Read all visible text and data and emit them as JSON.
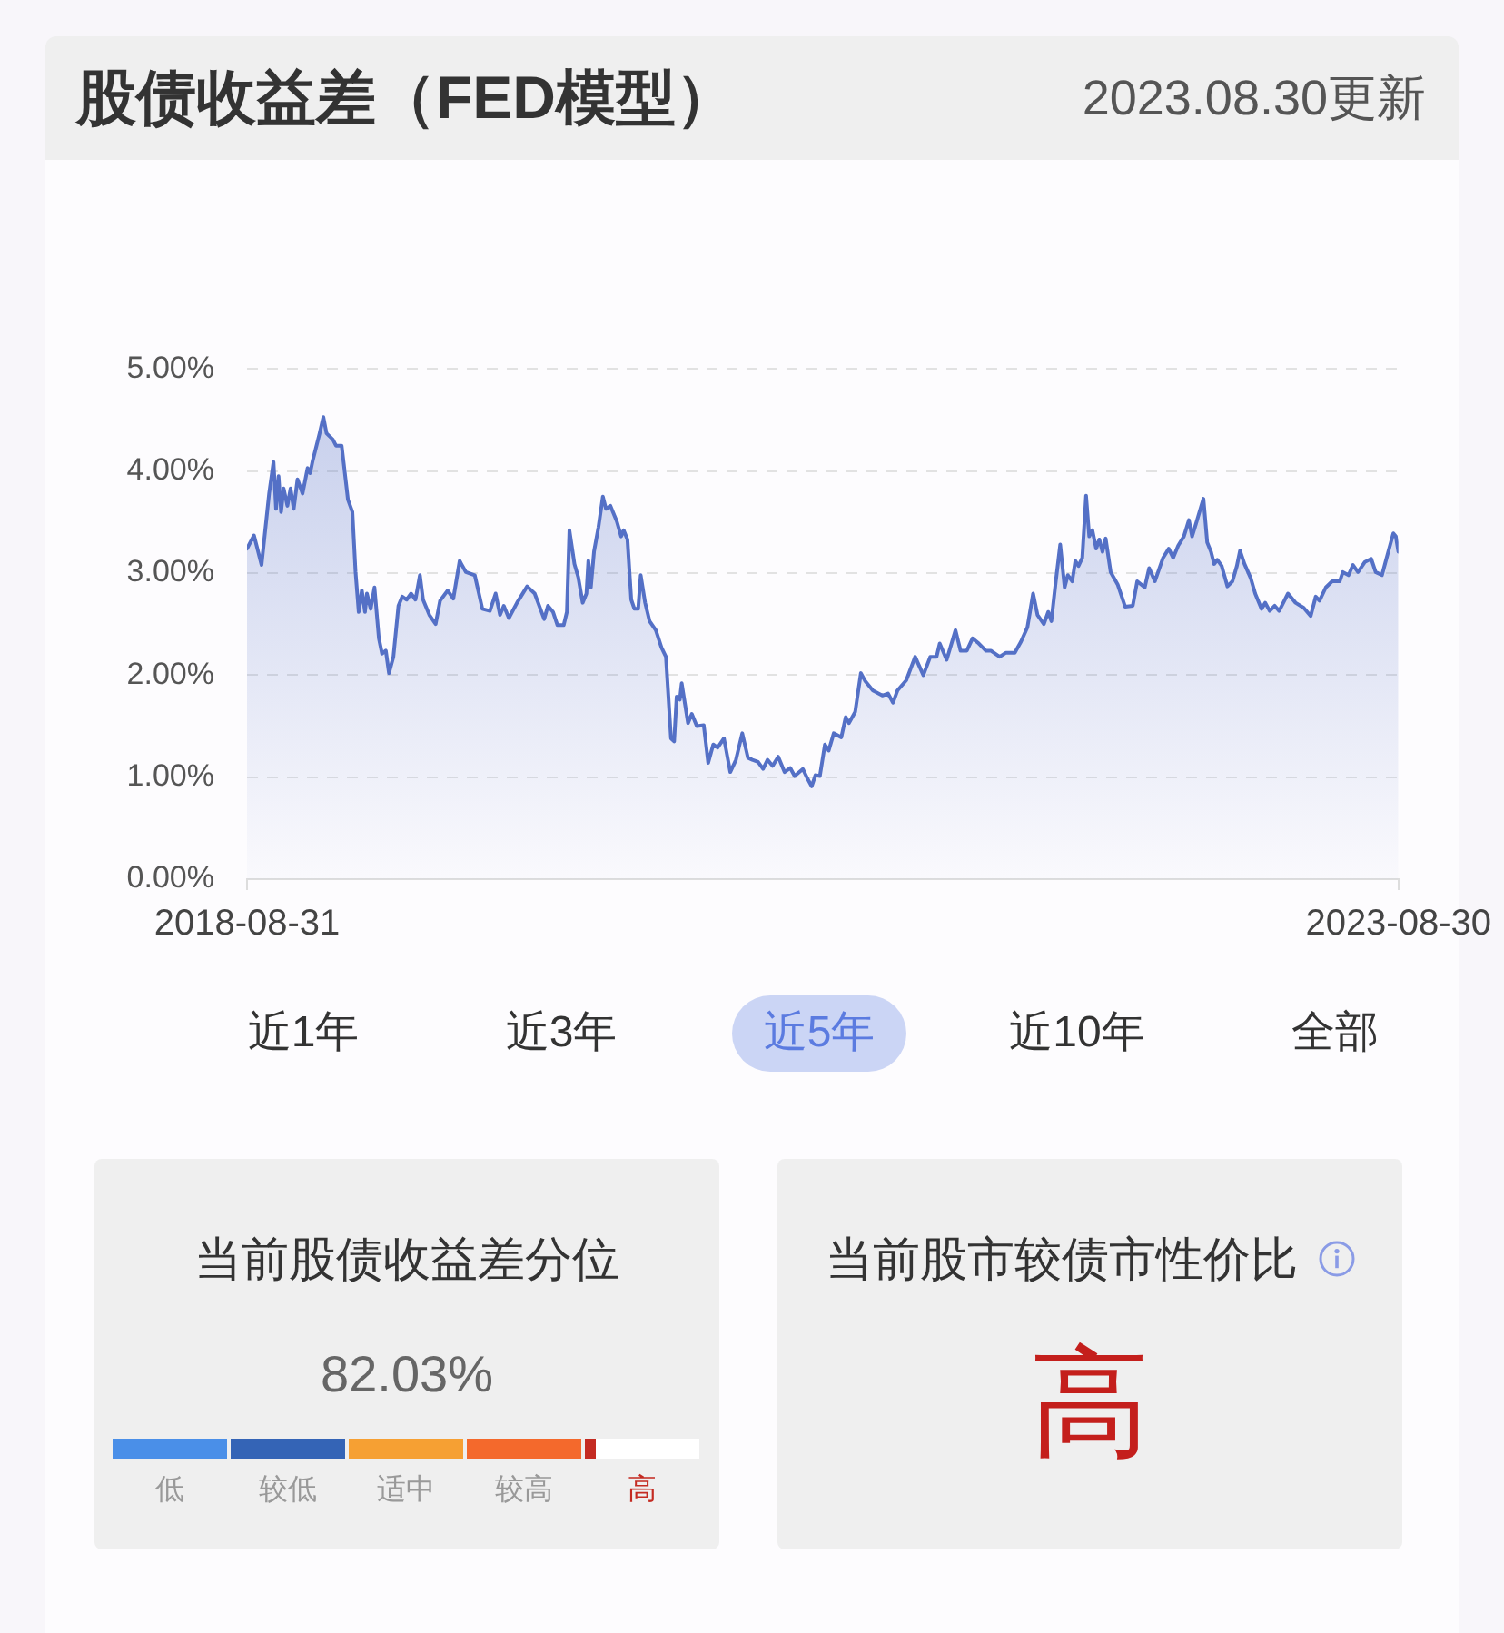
{
  "chart_data": [
    {
      "type": "area",
      "title": "股债收益差（FED模型）",
      "subtitle": "2023.08.30更新",
      "x": [
        "2018-08-31",
        "2018-09-11",
        "2018-09-23",
        "2018-10-05",
        "2018-10-12",
        "2018-10-16",
        "2018-10-20",
        "2018-10-24",
        "2018-10-28",
        "2018-11-03",
        "2018-11-08",
        "2018-11-13",
        "2018-11-19",
        "2018-11-27",
        "2018-12-05",
        "2018-12-09",
        "2018-12-13",
        "2018-12-24",
        "2018-12-30",
        "2019-01-04",
        "2019-01-14",
        "2019-01-19",
        "2019-01-28",
        "2019-02-07",
        "2019-02-14",
        "2019-02-19",
        "2019-02-24",
        "2019-03-01",
        "2019-03-06",
        "2019-03-09",
        "2019-03-15",
        "2019-03-21",
        "2019-03-28",
        "2019-04-02",
        "2019-04-08",
        "2019-04-13",
        "2019-04-20",
        "2019-04-28",
        "2019-05-04",
        "2019-05-11",
        "2019-05-18",
        "2019-05-25",
        "2019-06-01",
        "2019-06-06",
        "2019-06-16",
        "2019-06-26",
        "2019-07-03",
        "2019-07-15",
        "2019-07-24",
        "2019-08-03",
        "2019-08-13",
        "2019-08-27",
        "2019-09-08",
        "2019-09-20",
        "2019-09-29",
        "2019-10-06",
        "2019-10-12",
        "2019-10-20",
        "2019-11-02",
        "2019-11-18",
        "2019-11-30",
        "2019-12-15",
        "2019-12-21",
        "2019-12-29",
        "2020-01-05",
        "2020-01-15",
        "2020-01-20",
        "2020-01-24",
        "2020-02-01",
        "2020-02-07",
        "2020-02-14",
        "2020-02-20",
        "2020-02-23",
        "2020-02-27",
        "2020-03-03",
        "2020-03-10",
        "2020-03-17",
        "2020-03-22",
        "2020-03-29",
        "2020-04-08",
        "2020-04-15",
        "2020-04-19",
        "2020-04-25",
        "2020-05-01",
        "2020-05-06",
        "2020-05-12",
        "2020-05-16",
        "2020-05-23",
        "2020-05-30",
        "2020-06-09",
        "2020-06-18",
        "2020-06-25",
        "2020-07-03",
        "2020-07-08",
        "2020-07-12",
        "2020-07-17",
        "2020-07-20",
        "2020-07-30",
        "2020-08-05",
        "2020-08-13",
        "2020-08-24",
        "2020-08-31",
        "2020-09-08",
        "2020-09-15",
        "2020-09-25",
        "2020-10-05",
        "2020-10-14",
        "2020-10-24",
        "2020-11-02",
        "2020-11-09",
        "2020-11-18",
        "2020-11-26",
        "2020-12-03",
        "2020-12-11",
        "2020-12-20",
        "2020-12-30",
        "2021-01-08",
        "2021-01-15",
        "2021-01-28",
        "2021-02-04",
        "2021-02-11",
        "2021-02-17",
        "2021-02-24",
        "2021-03-04",
        "2021-03-10",
        "2021-03-18",
        "2021-03-30",
        "2021-04-06",
        "2021-04-11",
        "2021-04-21",
        "2021-04-30",
        "2021-05-07",
        "2021-05-19",
        "2021-06-03",
        "2021-06-12",
        "2021-06-20",
        "2021-06-27",
        "2021-07-11",
        "2021-07-25",
        "2021-08-07",
        "2021-08-18",
        "2021-08-28",
        "2021-09-02",
        "2021-09-13",
        "2021-09-27",
        "2021-10-05",
        "2021-10-15",
        "2021-10-24",
        "2021-11-03",
        "2021-11-14",
        "2021-11-22",
        "2021-12-06",
        "2021-12-16",
        "2021-12-30",
        "2022-01-09",
        "2022-01-19",
        "2022-01-28",
        "2022-02-04",
        "2022-02-14",
        "2022-02-21",
        "2022-02-26",
        "2022-03-05",
        "2022-03-12",
        "2022-03-19",
        "2022-03-24",
        "2022-03-31",
        "2022-04-05",
        "2022-04-10",
        "2022-04-16",
        "2022-04-22",
        "2022-04-27",
        "2022-05-02",
        "2022-05-08",
        "2022-05-13",
        "2022-05-18",
        "2022-05-23",
        "2022-05-31",
        "2022-06-11",
        "2022-06-23",
        "2022-07-05",
        "2022-07-12",
        "2022-07-24",
        "2022-07-31",
        "2022-08-09",
        "2022-08-22",
        "2022-08-31",
        "2022-09-07",
        "2022-09-15",
        "2022-09-24",
        "2022-10-02",
        "2022-10-07",
        "2022-10-13",
        "2022-10-25",
        "2022-10-31",
        "2022-11-06",
        "2022-11-11",
        "2022-11-16",
        "2022-11-23",
        "2022-12-02",
        "2022-12-10",
        "2022-12-17",
        "2022-12-22",
        "2022-12-29",
        "2023-01-08",
        "2023-01-15",
        "2023-01-25",
        "2023-01-31",
        "2023-02-07",
        "2023-02-15",
        "2023-02-22",
        "2023-02-27",
        "2023-03-08",
        "2023-03-20",
        "2023-04-02",
        "2023-04-13",
        "2023-04-21",
        "2023-04-27",
        "2023-05-07",
        "2023-05-17",
        "2023-05-29",
        "2023-06-03",
        "2023-06-12",
        "2023-06-19",
        "2023-06-27",
        "2023-07-08",
        "2023-07-18",
        "2023-07-25",
        "2023-08-04",
        "2023-08-14",
        "2023-08-22",
        "2023-08-26",
        "2023-08-30"
      ],
      "series": [
        {
          "color": "#5470c6",
          "values": [
            3.24,
            3.37,
            3.08,
            3.78,
            4.09,
            3.63,
            3.95,
            3.6,
            3.83,
            3.66,
            3.83,
            3.63,
            3.92,
            3.78,
            4.03,
            3.98,
            4.1,
            4.37,
            4.53,
            4.37,
            4.31,
            4.25,
            4.25,
            3.72,
            3.6,
            3.01,
            2.62,
            2.83,
            2.62,
            2.8,
            2.65,
            2.86,
            2.36,
            2.21,
            2.24,
            2.02,
            2.18,
            2.68,
            2.77,
            2.74,
            2.8,
            2.74,
            2.98,
            2.74,
            2.59,
            2.5,
            2.73,
            2.83,
            2.75,
            3.12,
            3.01,
            2.98,
            2.65,
            2.63,
            2.8,
            2.59,
            2.68,
            2.56,
            2.71,
            2.87,
            2.8,
            2.55,
            2.68,
            2.62,
            2.49,
            2.49,
            2.62,
            3.42,
            3.09,
            2.96,
            2.71,
            2.8,
            3.12,
            2.86,
            3.21,
            3.45,
            3.75,
            3.63,
            3.66,
            3.51,
            3.36,
            3.42,
            3.33,
            2.74,
            2.65,
            2.65,
            2.98,
            2.71,
            2.53,
            2.44,
            2.27,
            2.18,
            1.38,
            1.35,
            1.79,
            1.76,
            1.92,
            1.53,
            1.62,
            1.5,
            1.51,
            1.14,
            1.32,
            1.29,
            1.38,
            1.05,
            1.17,
            1.43,
            1.19,
            1.17,
            1.15,
            1.08,
            1.17,
            1.11,
            1.2,
            1.05,
            1.09,
            1.01,
            1.08,
            0.99,
            0.91,
            1.02,
            1.01,
            1.32,
            1.26,
            1.43,
            1.39,
            1.59,
            1.53,
            1.64,
            2.02,
            1.94,
            1.85,
            1.8,
            1.82,
            1.73,
            1.85,
            1.95,
            2.18,
            2.0,
            2.18,
            2.18,
            2.31,
            2.15,
            2.44,
            2.24,
            2.24,
            2.36,
            2.31,
            2.24,
            2.24,
            2.18,
            2.22,
            2.22,
            2.33,
            2.47,
            2.8,
            2.59,
            2.5,
            2.62,
            2.53,
            2.92,
            3.28,
            2.86,
            2.98,
            2.92,
            3.12,
            3.07,
            3.15,
            3.76,
            3.36,
            3.42,
            3.24,
            3.33,
            3.21,
            3.34,
            3.01,
            2.89,
            2.67,
            2.68,
            2.92,
            2.86,
            3.05,
            2.92,
            3.15,
            3.24,
            3.15,
            3.27,
            3.36,
            3.52,
            3.36,
            3.48,
            3.73,
            3.3,
            3.21,
            3.09,
            3.13,
            3.07,
            2.87,
            2.92,
            3.07,
            3.22,
            3.09,
            2.95,
            2.8,
            2.65,
            2.71,
            2.63,
            2.68,
            2.63,
            2.69,
            2.8,
            2.71,
            2.66,
            2.58,
            2.77,
            2.73,
            2.86,
            2.92,
            2.92,
            3.01,
            2.98,
            3.08,
            3.01,
            3.11,
            3.14,
            3.01,
            2.98,
            3.21,
            3.39,
            3.36,
            3.21
          ]
        }
      ],
      "xlim": [
        "2018-08-31",
        "2023-08-30"
      ],
      "xticks": [
        "2018-08-31",
        "2023-08-30"
      ],
      "ylim": [
        0,
        5
      ],
      "yticks": [
        {
          "value": 0,
          "label": "0.00%"
        },
        {
          "value": 1,
          "label": "1.00%"
        },
        {
          "value": 2,
          "label": "2.00%"
        },
        {
          "value": 3,
          "label": "3.00%"
        },
        {
          "value": 4,
          "label": "4.00%"
        },
        {
          "value": 5,
          "label": "5.00%"
        }
      ],
      "grid": "y",
      "marker": "none"
    },
    {
      "type": "other",
      "categories": [
        "近1年",
        "近3年",
        "近5年",
        "近10年",
        "全部"
      ],
      "colors": [
        "#333333",
        "#333333",
        "#5b7be0",
        "#333333",
        "#333333"
      ]
    },
    {
      "type": "other",
      "title": "当前股债收益差分位",
      "values": [
        82.03
      ],
      "value_labels": [
        "82.03%"
      ],
      "annotations": [
        "低",
        "较低",
        "适中",
        "较高",
        "高"
      ]
    },
    {
      "type": "other",
      "title": "当前股市较债市性价比",
      "annotations": [
        "高"
      ]
    }
  ]
}
